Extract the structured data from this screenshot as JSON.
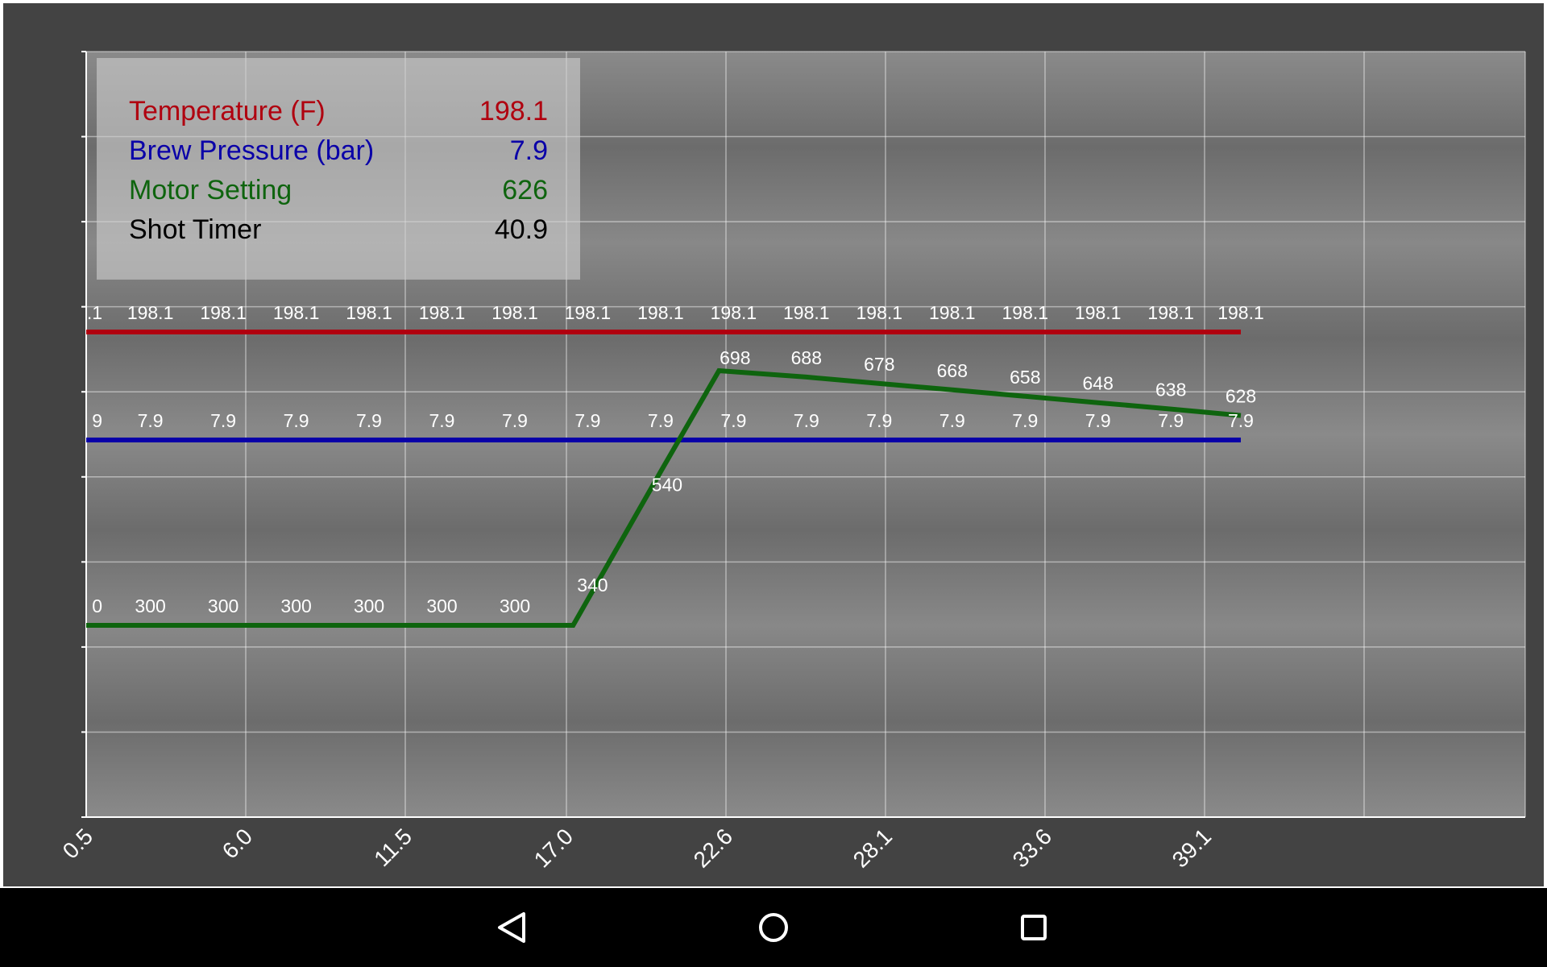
{
  "legend": {
    "items": [
      {
        "label": "Temperature (F)",
        "value": "198.1",
        "color": "#b0000f"
      },
      {
        "label": "Brew Pressure (bar)",
        "value": "7.9",
        "color": "#0a00a8"
      },
      {
        "label": "Motor Setting",
        "value": "626",
        "color": "#0e640e"
      },
      {
        "label": "Shot Timer",
        "value": "40.9",
        "color": "#000000"
      }
    ]
  },
  "chart_data": {
    "type": "line",
    "x_tick_labels": [
      "0.5",
      "6.0",
      "11.5",
      "17.0",
      "22.6",
      "28.1",
      "33.6",
      "39.1"
    ],
    "grid": true,
    "legend_placement": "top-left",
    "series": [
      {
        "key": "temperature",
        "color": "#b0000f",
        "x": [
          0.5,
          2.7,
          5.2,
          7.7,
          10.2,
          12.7,
          15.2,
          17.7,
          20.2,
          22.7,
          25.2,
          27.7,
          30.2,
          32.7,
          35.2,
          37.7,
          40.1
        ],
        "values": [
          198.1,
          198.1,
          198.1,
          198.1,
          198.1,
          198.1,
          198.1,
          198.1,
          198.1,
          198.1,
          198.1,
          198.1,
          198.1,
          198.1,
          198.1,
          198.1,
          198.1
        ],
        "labels": [
          ".1",
          "198.1",
          "198.1",
          "198.1",
          "198.1",
          "198.1",
          "198.1",
          "198.1",
          "198.1",
          "198.1",
          "198.1",
          "198.1",
          "198.1",
          "198.1",
          "198.1",
          "198.1",
          "198.1"
        ]
      },
      {
        "key": "pressure",
        "color": "#0a00a8",
        "x": [
          0.5,
          2.7,
          5.2,
          7.7,
          10.2,
          12.7,
          15.2,
          17.7,
          20.2,
          22.7,
          25.2,
          27.7,
          30.2,
          32.7,
          35.2,
          37.7,
          40.1
        ],
        "values": [
          7.9,
          7.9,
          7.9,
          7.9,
          7.9,
          7.9,
          7.9,
          7.9,
          7.9,
          7.9,
          7.9,
          7.9,
          7.9,
          7.9,
          7.9,
          7.9,
          7.9
        ],
        "labels": [
          "9",
          "7.9",
          "7.9",
          "7.9",
          "7.9",
          "7.9",
          "7.9",
          "7.9",
          "7.9",
          "7.9",
          "7.9",
          "7.9",
          "7.9",
          "7.9",
          "7.9",
          "7.9",
          "7.9"
        ]
      },
      {
        "key": "motor",
        "color": "#0e640e",
        "x": [
          0.5,
          2.7,
          5.2,
          7.7,
          10.2,
          12.7,
          15.2,
          17.2,
          17.7,
          20.2,
          22.2,
          25.2,
          27.7,
          30.2,
          32.7,
          35.2,
          37.7,
          40.1
        ],
        "values": [
          300,
          300,
          300,
          300,
          300,
          300,
          300,
          300,
          340,
          540,
          698,
          688,
          678,
          668,
          658,
          648,
          638,
          628
        ],
        "labels": [
          "0",
          "300",
          "300",
          "300",
          "300",
          "300",
          "300",
          "",
          "340",
          "540",
          "698",
          "688",
          "678",
          "668",
          "658",
          "648",
          "638",
          "628"
        ]
      }
    ]
  }
}
